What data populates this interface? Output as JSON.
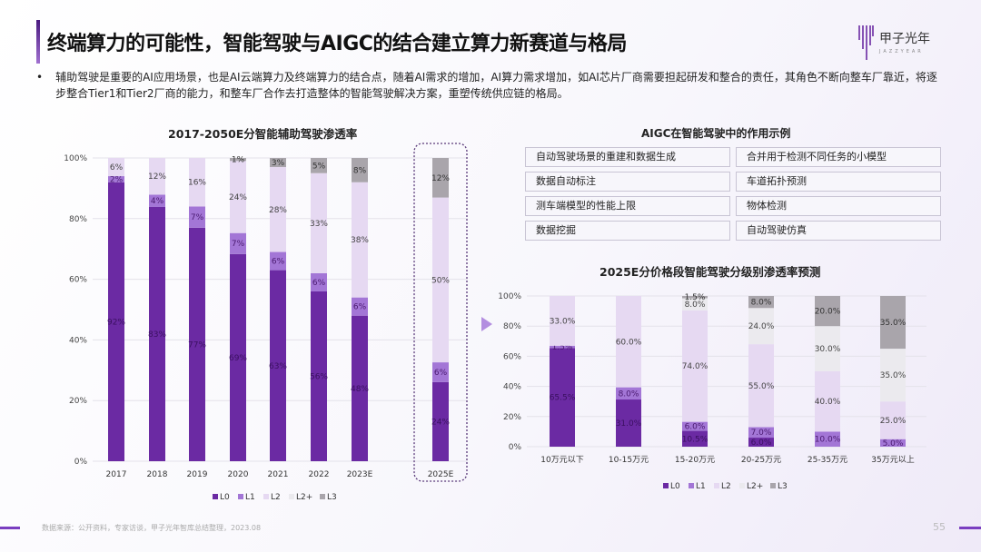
{
  "header": {
    "title": "终端算力的可能性，智能驾驶与AIGC的结合建立算力新赛道与格局",
    "logo_text": "甲子光年",
    "logo_sub": "JAZZYEAR"
  },
  "bullet": "辅助驾驶是重要的AI应用场景，也是AI云端算力及终端算力的结合点，随着AI需求的增加，AI算力需求增加，如AI芯片厂商需要担起研发和整合的责任，其角色不断向整车厂靠近，将逐步整合Tier1和Tier2厂商的能力，和整车厂合作去打造整体的智能驾驶解决方案，重塑传统供应链的格局。",
  "aigc": {
    "title": "AIGC在智能驾驶中的作用示例",
    "items": [
      "自动驾驶场景的重建和数据生成",
      "合并用于检测不同任务的小模型",
      "数据自动标注",
      "车道拓扑预测",
      "测车端模型的性能上限",
      "物体检测",
      "数据挖掘",
      "自动驾驶仿真"
    ]
  },
  "colors": {
    "L0": "#6b2aa3",
    "L1": "#a376d6",
    "L2": "#e6d9f2",
    "L2+": "#ebeaee",
    "L3": "#a9a5ab",
    "accent": "#7a3ec0"
  },
  "chart_data": [
    {
      "type": "bar",
      "stacked": true,
      "title": "2017-2050E分智能辅助驾驶渗透率",
      "categories": [
        "2017",
        "2018",
        "2019",
        "2020",
        "2021",
        "2022",
        "2023E",
        "2025E"
      ],
      "series": [
        {
          "name": "L0",
          "values": [
            92,
            83,
            77,
            69,
            63,
            56,
            48,
            24
          ]
        },
        {
          "name": "L1",
          "values": [
            2,
            4,
            7,
            7,
            6,
            6,
            6,
            6
          ]
        },
        {
          "name": "L2",
          "values": [
            6,
            12,
            16,
            24,
            28,
            33,
            38,
            50
          ]
        },
        {
          "name": "L2+",
          "values": [
            0,
            0,
            0,
            0,
            0,
            0,
            0,
            0
          ]
        },
        {
          "name": "L3",
          "values": [
            0,
            0,
            0,
            1,
            3,
            5,
            8,
            12
          ]
        }
      ],
      "labels": [
        [
          "92%",
          "2%",
          "6%",
          "",
          ""
        ],
        [
          "83%",
          "4%",
          "12%",
          "",
          ""
        ],
        [
          "77%",
          "7%",
          "16%",
          "",
          ""
        ],
        [
          "69%",
          "7%",
          "24%",
          "",
          "1%"
        ],
        [
          "63%",
          "6%",
          "28%",
          "",
          "3%"
        ],
        [
          "56%",
          "6%",
          "33%",
          "",
          "5%"
        ],
        [
          "48%",
          "6%",
          "38%",
          "",
          "8%"
        ],
        [
          "24%",
          "6%",
          "50%",
          "",
          "12%"
        ]
      ],
      "yticks": [
        "0%",
        "20%",
        "40%",
        "60%",
        "80%",
        "100%"
      ],
      "ylim": [
        0,
        100
      ],
      "legend": "bottom",
      "highlight": "2025E"
    },
    {
      "type": "bar",
      "stacked": true,
      "title": "2025E分价格段智能驾驶分级别渗透率预测",
      "categories": [
        "10万元以下",
        "10-15万元",
        "15-20万元",
        "20-25万元",
        "25-35万元",
        "35万元以上"
      ],
      "series": [
        {
          "name": "L0",
          "values": [
            65.5,
            31,
            10.5,
            6,
            0,
            0
          ]
        },
        {
          "name": "L1",
          "values": [
            1.5,
            8,
            6,
            7,
            10,
            5
          ]
        },
        {
          "name": "L2",
          "values": [
            33,
            60,
            74,
            55,
            40,
            25
          ]
        },
        {
          "name": "L2+",
          "values": [
            0,
            0,
            8,
            24,
            30,
            35
          ]
        },
        {
          "name": "L3",
          "values": [
            0,
            0,
            1.5,
            8,
            20,
            35
          ]
        }
      ],
      "labels": [
        [
          "65.5%",
          "1.5%",
          "33.0%",
          "",
          ""
        ],
        [
          "31.0%",
          "8.0%",
          "60.0%",
          "",
          ""
        ],
        [
          "10.5%",
          "6.0%",
          "74.0%",
          "8.0%",
          "1.5%"
        ],
        [
          "6.0%",
          "7.0%",
          "55.0%",
          "24.0%",
          "8.0%"
        ],
        [
          "",
          "10.0%",
          "40.0%",
          "30.0%",
          "20.0%"
        ],
        [
          "",
          "5.0%",
          "25.0%",
          "35.0%",
          "35.0%"
        ]
      ],
      "yticks": [
        "0%",
        "20%",
        "40%",
        "60%",
        "80%",
        "100%"
      ],
      "ylim": [
        0,
        100
      ],
      "legend": "bottom"
    }
  ],
  "footer": {
    "source": "数据来源：公开资料，专家访谈，甲子光年智库总结整理，2023.08",
    "page": "55"
  }
}
